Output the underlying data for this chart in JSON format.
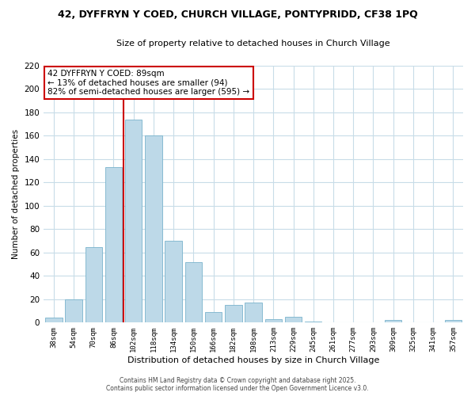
{
  "title": "42, DYFFRYN Y COED, CHURCH VILLAGE, PONTYPRIDD, CF38 1PQ",
  "subtitle": "Size of property relative to detached houses in Church Village",
  "xlabel": "Distribution of detached houses by size in Church Village",
  "ylabel": "Number of detached properties",
  "bar_labels": [
    "38sqm",
    "54sqm",
    "70sqm",
    "86sqm",
    "102sqm",
    "118sqm",
    "134sqm",
    "150sqm",
    "166sqm",
    "182sqm",
    "198sqm",
    "213sqm",
    "229sqm",
    "245sqm",
    "261sqm",
    "277sqm",
    "293sqm",
    "309sqm",
    "325sqm",
    "341sqm",
    "357sqm"
  ],
  "bar_values": [
    4,
    20,
    65,
    133,
    174,
    160,
    70,
    52,
    9,
    15,
    17,
    3,
    5,
    1,
    0,
    0,
    0,
    2,
    0,
    0,
    2
  ],
  "bar_color": "#bdd9e8",
  "bar_edge_color": "#7ab4cc",
  "ylim": [
    0,
    220
  ],
  "yticks": [
    0,
    20,
    40,
    60,
    80,
    100,
    120,
    140,
    160,
    180,
    200,
    220
  ],
  "vline_x": 3.5,
  "vline_color": "#cc0000",
  "annotation_title": "42 DYFFRYN Y COED: 89sqm",
  "annotation_line1": "← 13% of detached houses are smaller (94)",
  "annotation_line2": "82% of semi-detached houses are larger (595) →",
  "annotation_box_color": "#ffffff",
  "annotation_border_color": "#cc0000",
  "footer_line1": "Contains HM Land Registry data © Crown copyright and database right 2025.",
  "footer_line2": "Contains public sector information licensed under the Open Government Licence v3.0.",
  "background_color": "#ffffff",
  "grid_color": "#c8dce8"
}
